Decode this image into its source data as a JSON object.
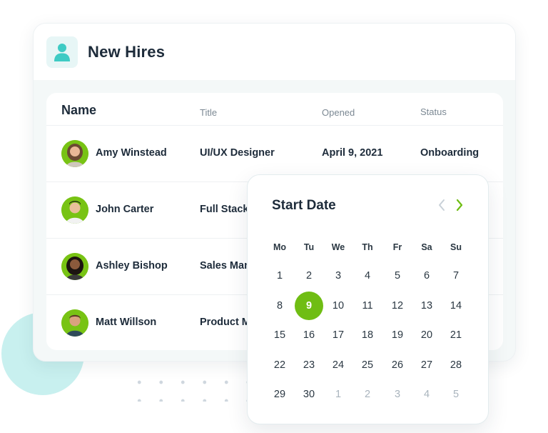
{
  "card": {
    "title": "New Hires",
    "icon": "user-icon",
    "accent": "#3ecbc4"
  },
  "table": {
    "headers": {
      "name": "Name",
      "title": "Title",
      "opened": "Opened",
      "status": "Status"
    },
    "rows": [
      {
        "name": "Amy Winstead",
        "title": "UI/UX Designer",
        "opened": "April 9, 2021",
        "status": "Onboarding"
      },
      {
        "name": "John Carter",
        "title": "Full Stack",
        "opened": "",
        "status": ""
      },
      {
        "name": "Ashley Bishop",
        "title": "Sales Man",
        "opened": "",
        "status": ""
      },
      {
        "name": "Matt Willson",
        "title": "Product M",
        "opened": "",
        "status": ""
      }
    ]
  },
  "calendar": {
    "title": "Start Date",
    "prev_icon": "chevron-left-icon",
    "next_icon": "chevron-right-icon",
    "selected_color": "#6fbd13",
    "weekdays": [
      "Mo",
      "Tu",
      "We",
      "Th",
      "Fr",
      "Sa",
      "Su"
    ],
    "weeks": [
      [
        "1",
        "2",
        "3",
        "4",
        "5",
        "6",
        "7"
      ],
      [
        "8",
        "9",
        "10",
        "11",
        "12",
        "13",
        "14"
      ],
      [
        "15",
        "16",
        "17",
        "18",
        "19",
        "20",
        "21"
      ],
      [
        "22",
        "23",
        "24",
        "25",
        "26",
        "27",
        "28"
      ],
      [
        "29",
        "30",
        "1",
        "2",
        "3",
        "4",
        "5"
      ]
    ],
    "selected_day": "9"
  }
}
